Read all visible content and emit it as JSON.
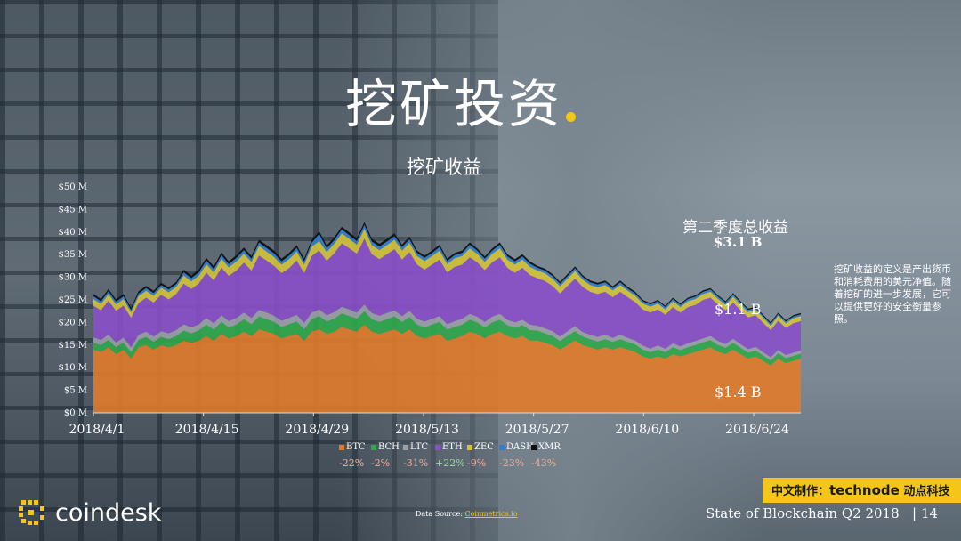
{
  "slide": {
    "title": "挖矿投资",
    "page_number": "14",
    "footer_text": "State of Blockchain Q2 2018",
    "footer_sep": "|",
    "logo_text": "coindesk",
    "source_label": "Data Source:",
    "source_link": "Coinmetrics.io",
    "badge_prefix": "中文制作：",
    "badge_brand": "technode",
    "badge_suffix": "动点科技",
    "side_note": "挖矿收益的定义是产出货币和消耗费用的美元净值。随着挖矿的进一步发展，它可以提供更好的安全衡量参照。",
    "q_total_label": "第二季度总收益",
    "q_total_value": "$3.1 B",
    "eth_total": "$1.1 B",
    "btc_total": "$1.4 B",
    "accent_color": "#f5c518"
  },
  "chart_data": {
    "type": "area",
    "stacked": true,
    "title": "挖矿收益",
    "ylim": [
      0,
      50
    ],
    "yticks": [
      "$0 M",
      "$5 M",
      "$10 M",
      "$15 M",
      "$20 M",
      "$25 M",
      "$30 M",
      "$35 M",
      "$40 M",
      "$45 M",
      "$50 M"
    ],
    "xticks": [
      "2018/4/1",
      "2018/4/15",
      "2018/4/29",
      "2018/5/13",
      "2018/5/27",
      "2018/6/10",
      "2018/6/24"
    ],
    "x_start": "2018-04-01",
    "x_end": "2018-06-30",
    "y_unit": "USD millions",
    "series": [
      {
        "name": "BTC",
        "color": "#e07b2a",
        "change": "-22%",
        "values": [
          14,
          13.5,
          14.5,
          13,
          14,
          12,
          14.5,
          15,
          14,
          15,
          14.5,
          15,
          16,
          15.5,
          16,
          17,
          16,
          17.5,
          16.5,
          17,
          18,
          17,
          18.5,
          18,
          17.5,
          16.5,
          17,
          17.5,
          16,
          18,
          18.5,
          17.5,
          18,
          19,
          18.5,
          18,
          19.5,
          18,
          17.5,
          18,
          18.5,
          17.5,
          18.5,
          17,
          16.5,
          17,
          17.5,
          16,
          16.5,
          17,
          18,
          17.5,
          16.5,
          17.5,
          18,
          17,
          16.5,
          17,
          16,
          16,
          15.5,
          15,
          14,
          15,
          16,
          15,
          14.5,
          14,
          14.5,
          14,
          14.5,
          14,
          13.5,
          12.5,
          12,
          12.5,
          12,
          13,
          12.5,
          13,
          13.5,
          14,
          14.5,
          13.5,
          13,
          14,
          13,
          12,
          12.5,
          11.5,
          10.5,
          12,
          11,
          11.5,
          12
        ]
      },
      {
        "name": "BCH",
        "color": "#2fa84a",
        "change": "-2%",
        "values": [
          1.5,
          1.5,
          1.6,
          1.5,
          1.5,
          1.4,
          1.6,
          1.8,
          1.7,
          1.8,
          1.8,
          2,
          2.2,
          2.1,
          2.2,
          2.5,
          2.4,
          2.6,
          2.4,
          2.5,
          2.7,
          2.6,
          2.8,
          2.7,
          2.6,
          2.5,
          2.6,
          2.7,
          2.5,
          2.7,
          2.9,
          2.7,
          2.8,
          3,
          2.9,
          2.8,
          3,
          2.7,
          2.6,
          2.7,
          2.8,
          2.6,
          2.7,
          2.5,
          2.4,
          2.5,
          2.6,
          2.4,
          2.5,
          2.5,
          2.6,
          2.5,
          2.4,
          2.5,
          2.6,
          2.4,
          2.3,
          2.4,
          2.3,
          2.2,
          2.1,
          2,
          1.9,
          2,
          2.1,
          1.9,
          1.8,
          1.8,
          1.8,
          1.7,
          1.8,
          1.7,
          1.6,
          1.5,
          1.4,
          1.5,
          1.4,
          1.5,
          1.4,
          1.5,
          1.5,
          1.6,
          1.6,
          1.5,
          1.4,
          1.5,
          1.4,
          1.3,
          1.3,
          1.2,
          1.1,
          1.2,
          1.1,
          1.1,
          1.1
        ]
      },
      {
        "name": "LTC",
        "color": "#9aa0a6",
        "change": "-31%",
        "values": [
          1.2,
          1.2,
          1.2,
          1.1,
          1.2,
          1.1,
          1.2,
          1.2,
          1.2,
          1.3,
          1.3,
          1.3,
          1.4,
          1.3,
          1.4,
          1.5,
          1.4,
          1.5,
          1.4,
          1.5,
          1.5,
          1.4,
          1.5,
          1.5,
          1.4,
          1.4,
          1.4,
          1.5,
          1.4,
          1.5,
          1.5,
          1.4,
          1.5,
          1.5,
          1.5,
          1.4,
          1.5,
          1.4,
          1.4,
          1.4,
          1.4,
          1.3,
          1.4,
          1.3,
          1.3,
          1.3,
          1.3,
          1.2,
          1.3,
          1.3,
          1.3,
          1.3,
          1.2,
          1.3,
          1.3,
          1.2,
          1.2,
          1.2,
          1.2,
          1.1,
          1.1,
          1.1,
          1,
          1.1,
          1.1,
          1,
          1,
          1,
          1,
          0.9,
          1,
          0.9,
          0.9,
          0.9,
          0.8,
          0.9,
          0.8,
          0.9,
          0.8,
          0.9,
          0.9,
          0.9,
          0.9,
          0.9,
          0.8,
          0.9,
          0.8,
          0.8,
          0.8,
          0.7,
          0.7,
          0.7,
          0.7,
          0.7,
          0.7
        ]
      },
      {
        "name": "ETH",
        "color": "#8a4fc9",
        "change": "+22%",
        "values": [
          7,
          6.5,
          7.5,
          7,
          7,
          6.5,
          7,
          7.5,
          7.5,
          8,
          7.5,
          8,
          9,
          8.5,
          9,
          10,
          9.5,
          10.5,
          10,
          10.5,
          11,
          10.5,
          12,
          11.5,
          11,
          10.5,
          11,
          12,
          11,
          12.5,
          13,
          12,
          13,
          14,
          13.5,
          13,
          14.5,
          13,
          12.5,
          13,
          13.5,
          12.5,
          13,
          12,
          11.5,
          12,
          12.5,
          11.5,
          12,
          12,
          12.5,
          12,
          11.5,
          12,
          12.5,
          11.5,
          11,
          11.5,
          11,
          10.5,
          10.5,
          10,
          9.5,
          10,
          10.5,
          10,
          9.5,
          9.5,
          9.5,
          9,
          9.5,
          9,
          8.5,
          8,
          8,
          8,
          7.5,
          8,
          7.5,
          8,
          8,
          8.5,
          8.5,
          8,
          7.5,
          8,
          7.5,
          7,
          7,
          6.5,
          6,
          6.5,
          6,
          6.5,
          6.5
        ]
      },
      {
        "name": "ZEC",
        "color": "#d4c23a",
        "change": "-9%",
        "values": [
          1.5,
          1.4,
          1.5,
          1.4,
          1.5,
          1.3,
          1.5,
          1.5,
          1.5,
          1.6,
          1.6,
          1.6,
          1.8,
          1.7,
          1.8,
          1.9,
          1.8,
          2,
          1.9,
          2,
          2,
          1.9,
          2.1,
          2,
          2,
          1.9,
          2,
          2,
          1.9,
          2.1,
          2.1,
          2,
          2.1,
          2.2,
          2.1,
          2,
          2.2,
          2,
          2,
          2,
          2.1,
          2,
          2,
          1.9,
          1.9,
          1.9,
          2,
          1.8,
          1.9,
          1.9,
          2,
          1.9,
          1.8,
          1.9,
          2,
          1.8,
          1.8,
          1.8,
          1.8,
          1.7,
          1.7,
          1.6,
          1.6,
          1.6,
          1.7,
          1.6,
          1.5,
          1.5,
          1.5,
          1.5,
          1.5,
          1.4,
          1.4,
          1.3,
          1.3,
          1.3,
          1.2,
          1.3,
          1.2,
          1.3,
          1.3,
          1.3,
          1.3,
          1.3,
          1.2,
          1.3,
          1.2,
          1.2,
          1.2,
          1.1,
          1,
          1.1,
          1,
          1.1,
          1.1
        ]
      },
      {
        "name": "DASH",
        "color": "#2f7fd0",
        "change": "-23%",
        "values": [
          0.6,
          0.6,
          0.6,
          0.6,
          0.6,
          0.5,
          0.6,
          0.6,
          0.6,
          0.6,
          0.6,
          0.6,
          0.7,
          0.7,
          0.7,
          0.8,
          0.7,
          0.8,
          0.7,
          0.8,
          0.8,
          0.7,
          0.8,
          0.8,
          0.8,
          0.7,
          0.8,
          0.8,
          0.7,
          0.8,
          1.6,
          0.8,
          0.8,
          0.9,
          0.8,
          0.8,
          0.9,
          0.8,
          0.8,
          0.8,
          0.8,
          0.8,
          0.8,
          0.7,
          0.7,
          0.7,
          0.8,
          0.7,
          0.7,
          0.7,
          0.8,
          0.7,
          0.7,
          0.7,
          0.8,
          0.7,
          0.7,
          0.7,
          0.7,
          0.6,
          0.6,
          0.6,
          0.6,
          0.6,
          0.6,
          0.6,
          0.6,
          0.6,
          0.6,
          0.5,
          0.6,
          0.5,
          0.5,
          0.5,
          0.5,
          0.5,
          0.5,
          0.5,
          0.5,
          0.5,
          0.5,
          0.5,
          0.5,
          0.5,
          0.5,
          0.5,
          0.5,
          0.5,
          0.4,
          0.4,
          0.4,
          0.4,
          0.4,
          0.4,
          0.4
        ]
      },
      {
        "name": "XMR",
        "color": "#111111",
        "change": "-43%",
        "values": [
          0.5,
          0.5,
          0.5,
          0.5,
          0.5,
          0.4,
          0.5,
          0.5,
          0.5,
          0.5,
          0.5,
          0.5,
          0.6,
          0.6,
          0.6,
          0.6,
          0.6,
          0.6,
          0.6,
          0.6,
          0.6,
          0.6,
          0.6,
          0.6,
          0.6,
          0.6,
          0.6,
          0.6,
          0.6,
          0.6,
          0.6,
          0.6,
          0.6,
          0.6,
          0.6,
          0.6,
          0.6,
          0.6,
          0.6,
          0.6,
          0.6,
          0.5,
          0.6,
          0.5,
          0.5,
          0.5,
          0.5,
          0.5,
          0.5,
          0.5,
          0.5,
          0.5,
          0.5,
          0.5,
          0.5,
          0.5,
          0.5,
          0.5,
          0.5,
          0.4,
          0.4,
          0.4,
          0.4,
          0.4,
          0.4,
          0.4,
          0.4,
          0.4,
          0.4,
          0.4,
          0.4,
          0.4,
          0.4,
          0.3,
          0.3,
          0.3,
          0.3,
          0.3,
          0.3,
          0.3,
          0.3,
          0.3,
          0.3,
          0.3,
          0.3,
          0.3,
          0.3,
          0.3,
          0.3,
          0.3,
          0.3,
          0.3,
          0.3,
          0.3,
          0.3
        ]
      }
    ],
    "legend_placement": "bottom",
    "grid": false
  }
}
